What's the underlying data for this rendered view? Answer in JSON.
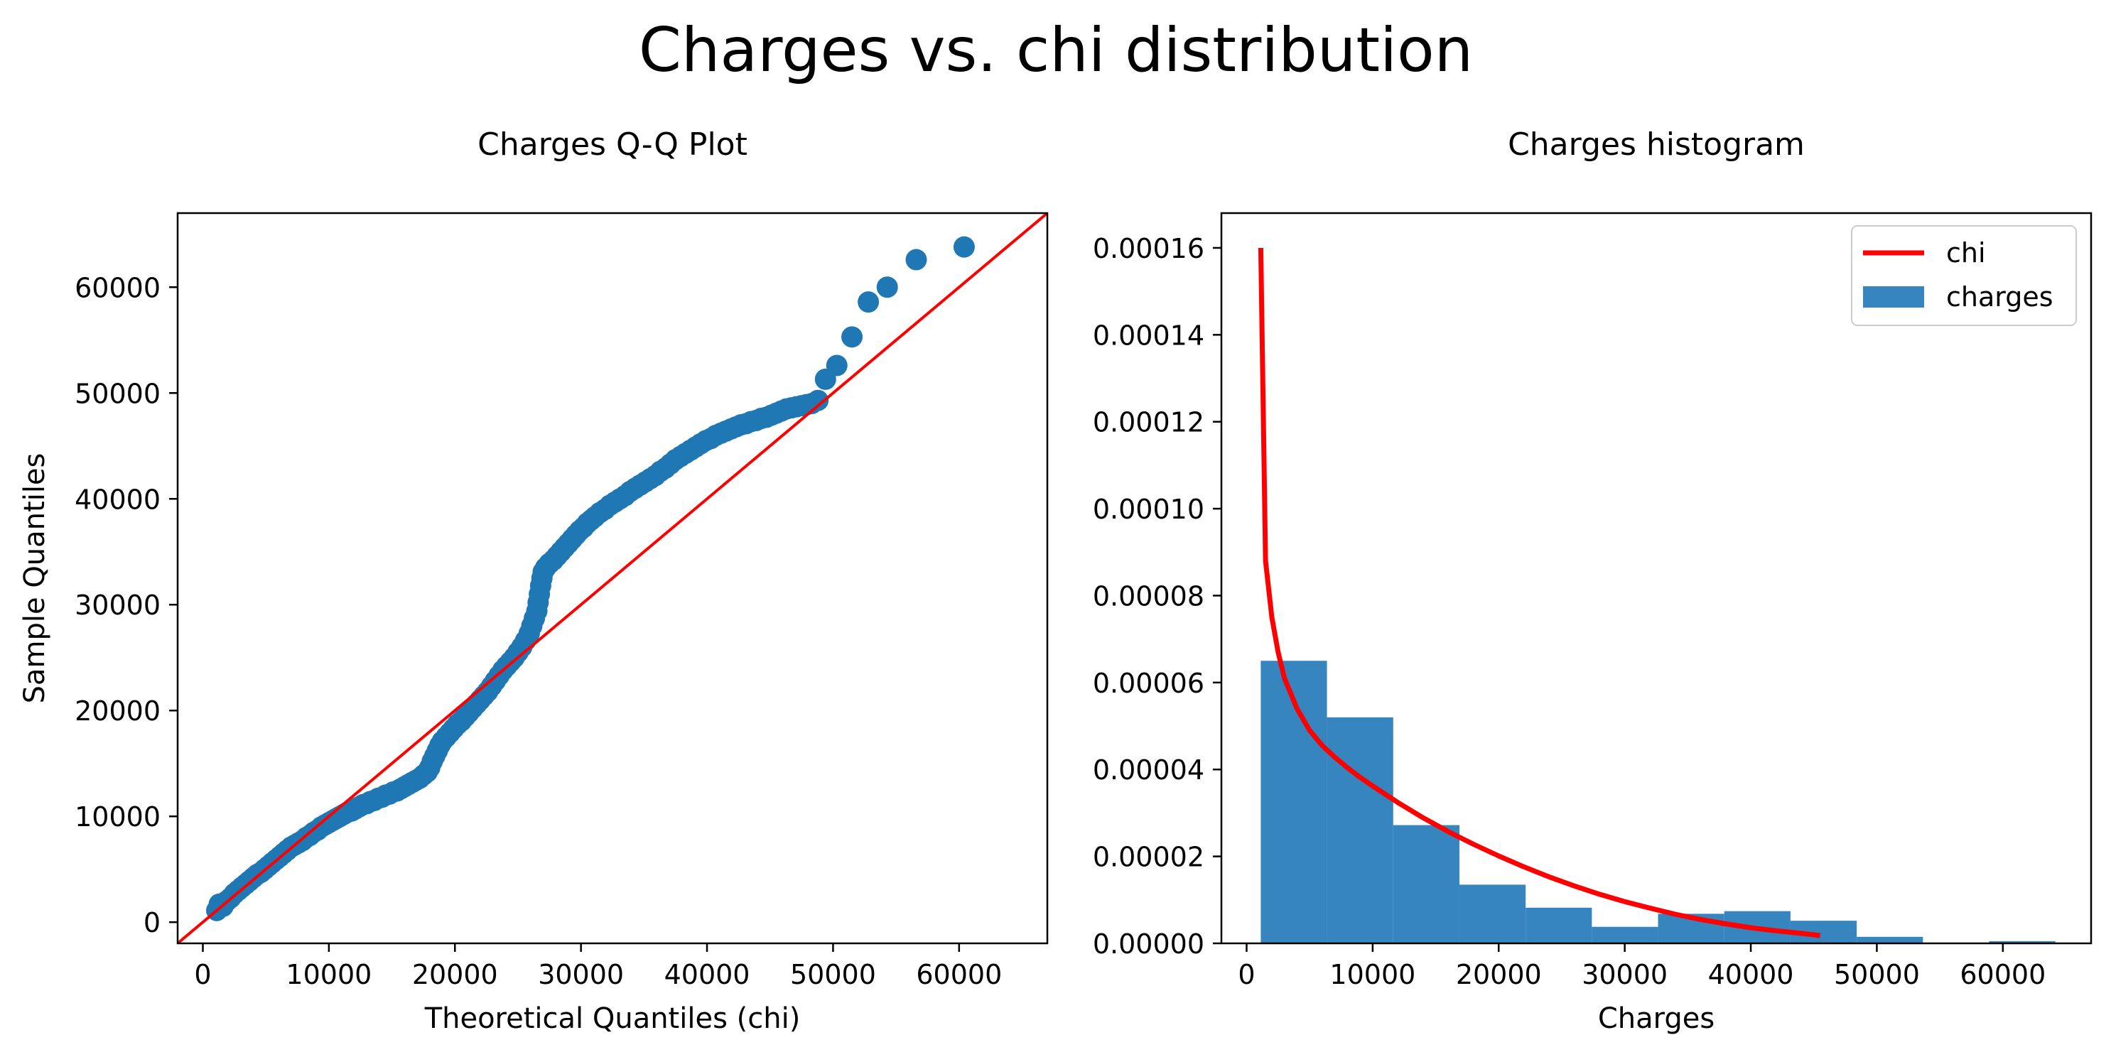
{
  "figure": {
    "suptitle": "Charges vs. chi distribution"
  },
  "chart_data": [
    {
      "type": "scatter",
      "title": "Charges Q-Q Plot",
      "xlabel": "Theoretical Quantiles (chi)",
      "ylabel": "Sample Quantiles",
      "xlim": [
        -2000,
        67000
      ],
      "ylim": [
        -2000,
        67000
      ],
      "xticks": [
        0,
        10000,
        20000,
        30000,
        40000,
        50000,
        60000
      ],
      "yticks": [
        0,
        10000,
        20000,
        30000,
        40000,
        50000,
        60000
      ],
      "grid": false,
      "series": [
        {
          "kind": "points",
          "color": "#1f77b4",
          "points": [
            [
              1100,
              1100
            ],
            [
              1300,
              1700
            ],
            [
              1600,
              1500
            ],
            [
              1900,
              2000
            ],
            [
              2200,
              2300
            ],
            [
              2500,
              2700
            ],
            [
              2800,
              3000
            ],
            [
              3100,
              3300
            ],
            [
              3400,
              3600
            ],
            [
              3700,
              3900
            ],
            [
              4000,
              4200
            ],
            [
              4300,
              4500
            ],
            [
              4600,
              4700
            ],
            [
              4900,
              5000
            ],
            [
              5200,
              5300
            ],
            [
              5500,
              5600
            ],
            [
              5800,
              5900
            ],
            [
              6100,
              6200
            ],
            [
              6400,
              6500
            ],
            [
              6700,
              6800
            ],
            [
              7000,
              7100
            ],
            [
              7300,
              7300
            ],
            [
              7600,
              7500
            ],
            [
              7900,
              7700
            ],
            [
              8200,
              8000
            ],
            [
              8500,
              8200
            ],
            [
              8800,
              8500
            ],
            [
              9100,
              8700
            ],
            [
              9400,
              9000
            ],
            [
              9700,
              9200
            ],
            [
              10000,
              9400
            ],
            [
              10300,
              9600
            ],
            [
              10600,
              9800
            ],
            [
              10900,
              10000
            ],
            [
              11200,
              10200
            ],
            [
              11500,
              10400
            ],
            [
              11800,
              10500
            ],
            [
              12100,
              10700
            ],
            [
              12400,
              10900
            ],
            [
              12700,
              11100
            ],
            [
              13000,
              11200
            ],
            [
              13300,
              11400
            ],
            [
              13600,
              11500
            ],
            [
              13900,
              11700
            ],
            [
              14200,
              11800
            ],
            [
              14500,
              12000
            ],
            [
              14800,
              12100
            ],
            [
              15100,
              12300
            ],
            [
              15400,
              12400
            ],
            [
              15700,
              12600
            ],
            [
              16000,
              12800
            ],
            [
              16300,
              13000
            ],
            [
              16600,
              13200
            ],
            [
              16900,
              13400
            ],
            [
              17200,
              13600
            ],
            [
              17500,
              13900
            ],
            [
              17800,
              14200
            ],
            [
              18000,
              14600
            ],
            [
              18200,
              15200
            ],
            [
              18400,
              15700
            ],
            [
              18600,
              16200
            ],
            [
              18800,
              16700
            ],
            [
              19000,
              17100
            ],
            [
              19300,
              17500
            ],
            [
              19600,
              17900
            ],
            [
              19900,
              18300
            ],
            [
              20200,
              18700
            ],
            [
              20500,
              19000
            ],
            [
              20800,
              19400
            ],
            [
              21100,
              19800
            ],
            [
              21400,
              20200
            ],
            [
              21700,
              20600
            ],
            [
              22000,
              21000
            ],
            [
              22300,
              21400
            ],
            [
              22600,
              21800
            ],
            [
              22900,
              22300
            ],
            [
              23200,
              22800
            ],
            [
              23500,
              23300
            ],
            [
              23800,
              23800
            ],
            [
              24100,
              24200
            ],
            [
              24400,
              24600
            ],
            [
              24700,
              25000
            ],
            [
              25000,
              25500
            ],
            [
              25300,
              26000
            ],
            [
              25600,
              26600
            ],
            [
              25900,
              27300
            ],
            [
              26100,
              28000
            ],
            [
              26300,
              28700
            ],
            [
              26500,
              29400
            ],
            [
              26600,
              30200
            ],
            [
              26700,
              31000
            ],
            [
              26800,
              31800
            ],
            [
              26900,
              32500
            ],
            [
              27000,
              33100
            ],
            [
              27200,
              33500
            ],
            [
              27500,
              33900
            ],
            [
              27800,
              34200
            ],
            [
              28100,
              34600
            ],
            [
              28400,
              35000
            ],
            [
              28700,
              35400
            ],
            [
              29000,
              35800
            ],
            [
              29300,
              36200
            ],
            [
              29600,
              36600
            ],
            [
              29900,
              37000
            ],
            [
              30200,
              37300
            ],
            [
              30500,
              37700
            ],
            [
              30800,
              38000
            ],
            [
              31100,
              38300
            ],
            [
              31500,
              38700
            ],
            [
              31900,
              39000
            ],
            [
              32300,
              39400
            ],
            [
              32700,
              39700
            ],
            [
              33100,
              40000
            ],
            [
              33500,
              40300
            ],
            [
              33900,
              40700
            ],
            [
              34300,
              41000
            ],
            [
              34700,
              41300
            ],
            [
              35100,
              41600
            ],
            [
              35500,
              41900
            ],
            [
              35900,
              42200
            ],
            [
              36300,
              42600
            ],
            [
              36700,
              42900
            ],
            [
              37100,
              43300
            ],
            [
              37500,
              43700
            ],
            [
              37900,
              44000
            ],
            [
              38300,
              44300
            ],
            [
              38700,
              44600
            ],
            [
              39100,
              44900
            ],
            [
              39500,
              45200
            ],
            [
              39900,
              45500
            ],
            [
              40300,
              45700
            ],
            [
              40700,
              46000
            ],
            [
              41100,
              46200
            ],
            [
              41500,
              46400
            ],
            [
              41900,
              46600
            ],
            [
              42300,
              46800
            ],
            [
              42700,
              47000
            ],
            [
              43100,
              47100
            ],
            [
              43500,
              47300
            ],
            [
              43900,
              47400
            ],
            [
              44300,
              47600
            ],
            [
              44700,
              47700
            ],
            [
              45100,
              47900
            ],
            [
              45500,
              48100
            ],
            [
              45900,
              48300
            ],
            [
              46300,
              48500
            ],
            [
              46700,
              48600
            ],
            [
              47100,
              48700
            ],
            [
              47500,
              48800
            ],
            [
              47900,
              48900
            ],
            [
              48300,
              49000
            ],
            [
              48800,
              49300
            ],
            [
              49400,
              51300
            ],
            [
              50300,
              52600
            ],
            [
              51500,
              55300
            ],
            [
              52800,
              58600
            ],
            [
              54300,
              60000
            ],
            [
              56600,
              62600
            ],
            [
              60400,
              63800
            ]
          ]
        },
        {
          "kind": "line",
          "color": "#ff0000",
          "points": [
            [
              -2000,
              -2000
            ],
            [
              67000,
              67000
            ]
          ]
        }
      ]
    },
    {
      "type": "bar",
      "title": "Charges histogram",
      "xlabel": "Charges",
      "ylabel": "",
      "xlim": [
        -2000,
        67000
      ],
      "ylim": [
        0,
        0.000168
      ],
      "xticks": [
        0,
        10000,
        20000,
        30000,
        40000,
        50000,
        60000
      ],
      "yticks": [
        "0.00000",
        "0.00002",
        "0.00004",
        "0.00006",
        "0.00008",
        "0.00010",
        "0.00012",
        "0.00014",
        "0.00016"
      ],
      "grid": false,
      "legend": {
        "placement": "top-right",
        "entries": [
          {
            "label": "chi",
            "color": "#ff0000",
            "kind": "line"
          },
          {
            "label": "charges",
            "color": "#3785bf",
            "kind": "patch"
          }
        ]
      },
      "series": [
        {
          "name": "charges",
          "kind": "histogram",
          "color": "#3785bf",
          "bin_edges": [
            1122,
            6375,
            11629,
            16883,
            22136,
            27390,
            32643,
            37897,
            43150,
            48404,
            53657,
            58911,
            64164
          ],
          "densities": [
            6.5e-05,
            5.2e-05,
            2.72e-05,
            1.35e-05,
            8.2e-06,
            3.8e-06,
            6.8e-06,
            7.4e-06,
            5.2e-06,
            1.5e-06,
            0.0,
            5e-07
          ]
        },
        {
          "name": "chi",
          "kind": "line",
          "color": "#ff0000",
          "points": [
            [
              1122,
              0.00016
            ],
            [
              1500,
              8.8e-05
            ],
            [
              2000,
              7.5e-05
            ],
            [
              2500,
              6.7e-05
            ],
            [
              3000,
              6.1e-05
            ],
            [
              4000,
              5.4e-05
            ],
            [
              5000,
              4.9e-05
            ],
            [
              6000,
              4.55e-05
            ],
            [
              7000,
              4.28e-05
            ],
            [
              8000,
              4.04e-05
            ],
            [
              9000,
              3.82e-05
            ],
            [
              10000,
              3.62e-05
            ],
            [
              12000,
              3.24e-05
            ],
            [
              14000,
              2.89e-05
            ],
            [
              16000,
              2.57e-05
            ],
            [
              18000,
              2.28e-05
            ],
            [
              20000,
              2.01e-05
            ],
            [
              22000,
              1.76e-05
            ],
            [
              24000,
              1.53e-05
            ],
            [
              26000,
              1.32e-05
            ],
            [
              28000,
              1.13e-05
            ],
            [
              30000,
              9.6e-06
            ],
            [
              32000,
              8.1e-06
            ],
            [
              34000,
              6.7e-06
            ],
            [
              36000,
              5.5e-06
            ],
            [
              38000,
              4.5e-06
            ],
            [
              40000,
              3.6e-06
            ],
            [
              42000,
              2.9e-06
            ],
            [
              44000,
              2.3e-06
            ],
            [
              45500,
              1.8e-06
            ]
          ]
        }
      ]
    }
  ]
}
